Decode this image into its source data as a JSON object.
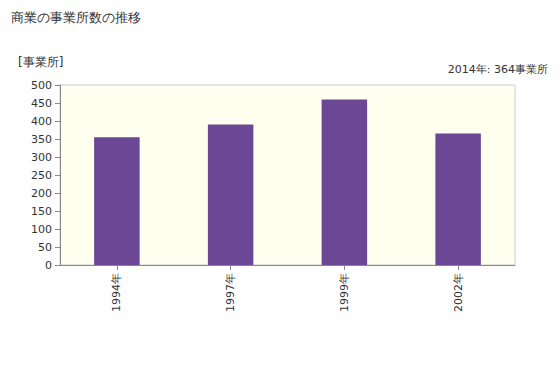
{
  "chart_data": {
    "type": "bar",
    "title": "商業の事業所数の推移",
    "ylabel": "[事業所]",
    "annotation": "2014年: 364事業所",
    "categories": [
      "1994年",
      "1997年",
      "1999年",
      "2002年"
    ],
    "values": [
      355,
      390,
      460,
      365
    ],
    "color": "#6b4796",
    "ylim": [
      0,
      500
    ],
    "yticks": [
      0,
      50,
      100,
      150,
      200,
      250,
      300,
      350,
      400,
      450,
      500
    ],
    "grid": false
  }
}
